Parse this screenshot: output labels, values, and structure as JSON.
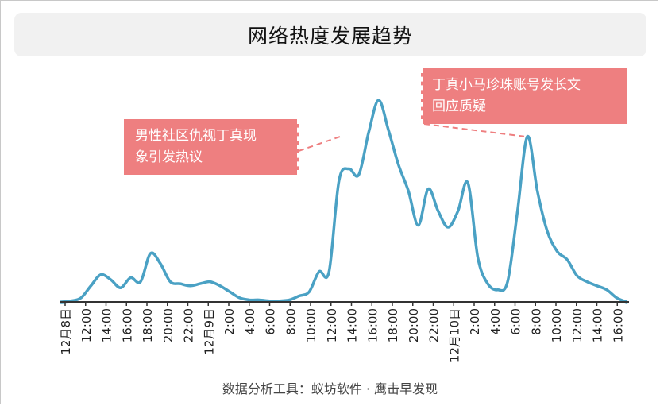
{
  "title": "网络热度发展趋势",
  "footer": "数据分析工具：蚁坊软件 · 鹰击早发现",
  "annotations": [
    {
      "lines": [
        "男性社区仇视丁真现",
        "象引发热议"
      ]
    },
    {
      "lines": [
        "丁真小马珍珠账号发长文",
        "回应质疑"
      ]
    }
  ],
  "colors": {
    "line": "#4aa1c4",
    "callout": "#ee7f80",
    "axis": "#333333"
  },
  "chart_data": {
    "type": "line",
    "title": "网络热度发展趋势",
    "xlabel": "",
    "ylabel": "",
    "grid": false,
    "legend": "none",
    "ylim": [
      0,
      100
    ],
    "x_ticks": [
      "12月8日",
      "12:00",
      "14:00",
      "16:00",
      "18:00",
      "20:00",
      "22:00",
      "12月9日",
      "2:00",
      "4:00",
      "6:00",
      "8:00",
      "10:00",
      "12:00",
      "14:00",
      "16:00",
      "18:00",
      "20:00",
      "22:00",
      "12月10日",
      "2:00",
      "4:00",
      "6:00",
      "8:00",
      "10:00",
      "12:00",
      "14:00",
      "16:00"
    ],
    "series": [
      {
        "values": [
          0,
          0.5,
          2,
          8,
          13.5,
          11,
          7,
          12,
          10,
          24,
          19,
          10,
          9,
          8,
          9,
          10,
          8,
          5,
          2,
          1,
          1,
          0.5,
          0.5,
          1,
          3,
          5,
          15,
          15,
          60,
          66,
          63,
          84,
          100,
          85,
          68,
          55,
          38,
          56,
          45,
          37,
          45,
          59,
          22,
          9,
          6,
          10,
          45,
          82,
          55,
          35,
          25,
          21,
          13,
          10,
          8,
          6,
          2,
          0
        ]
      }
    ]
  }
}
